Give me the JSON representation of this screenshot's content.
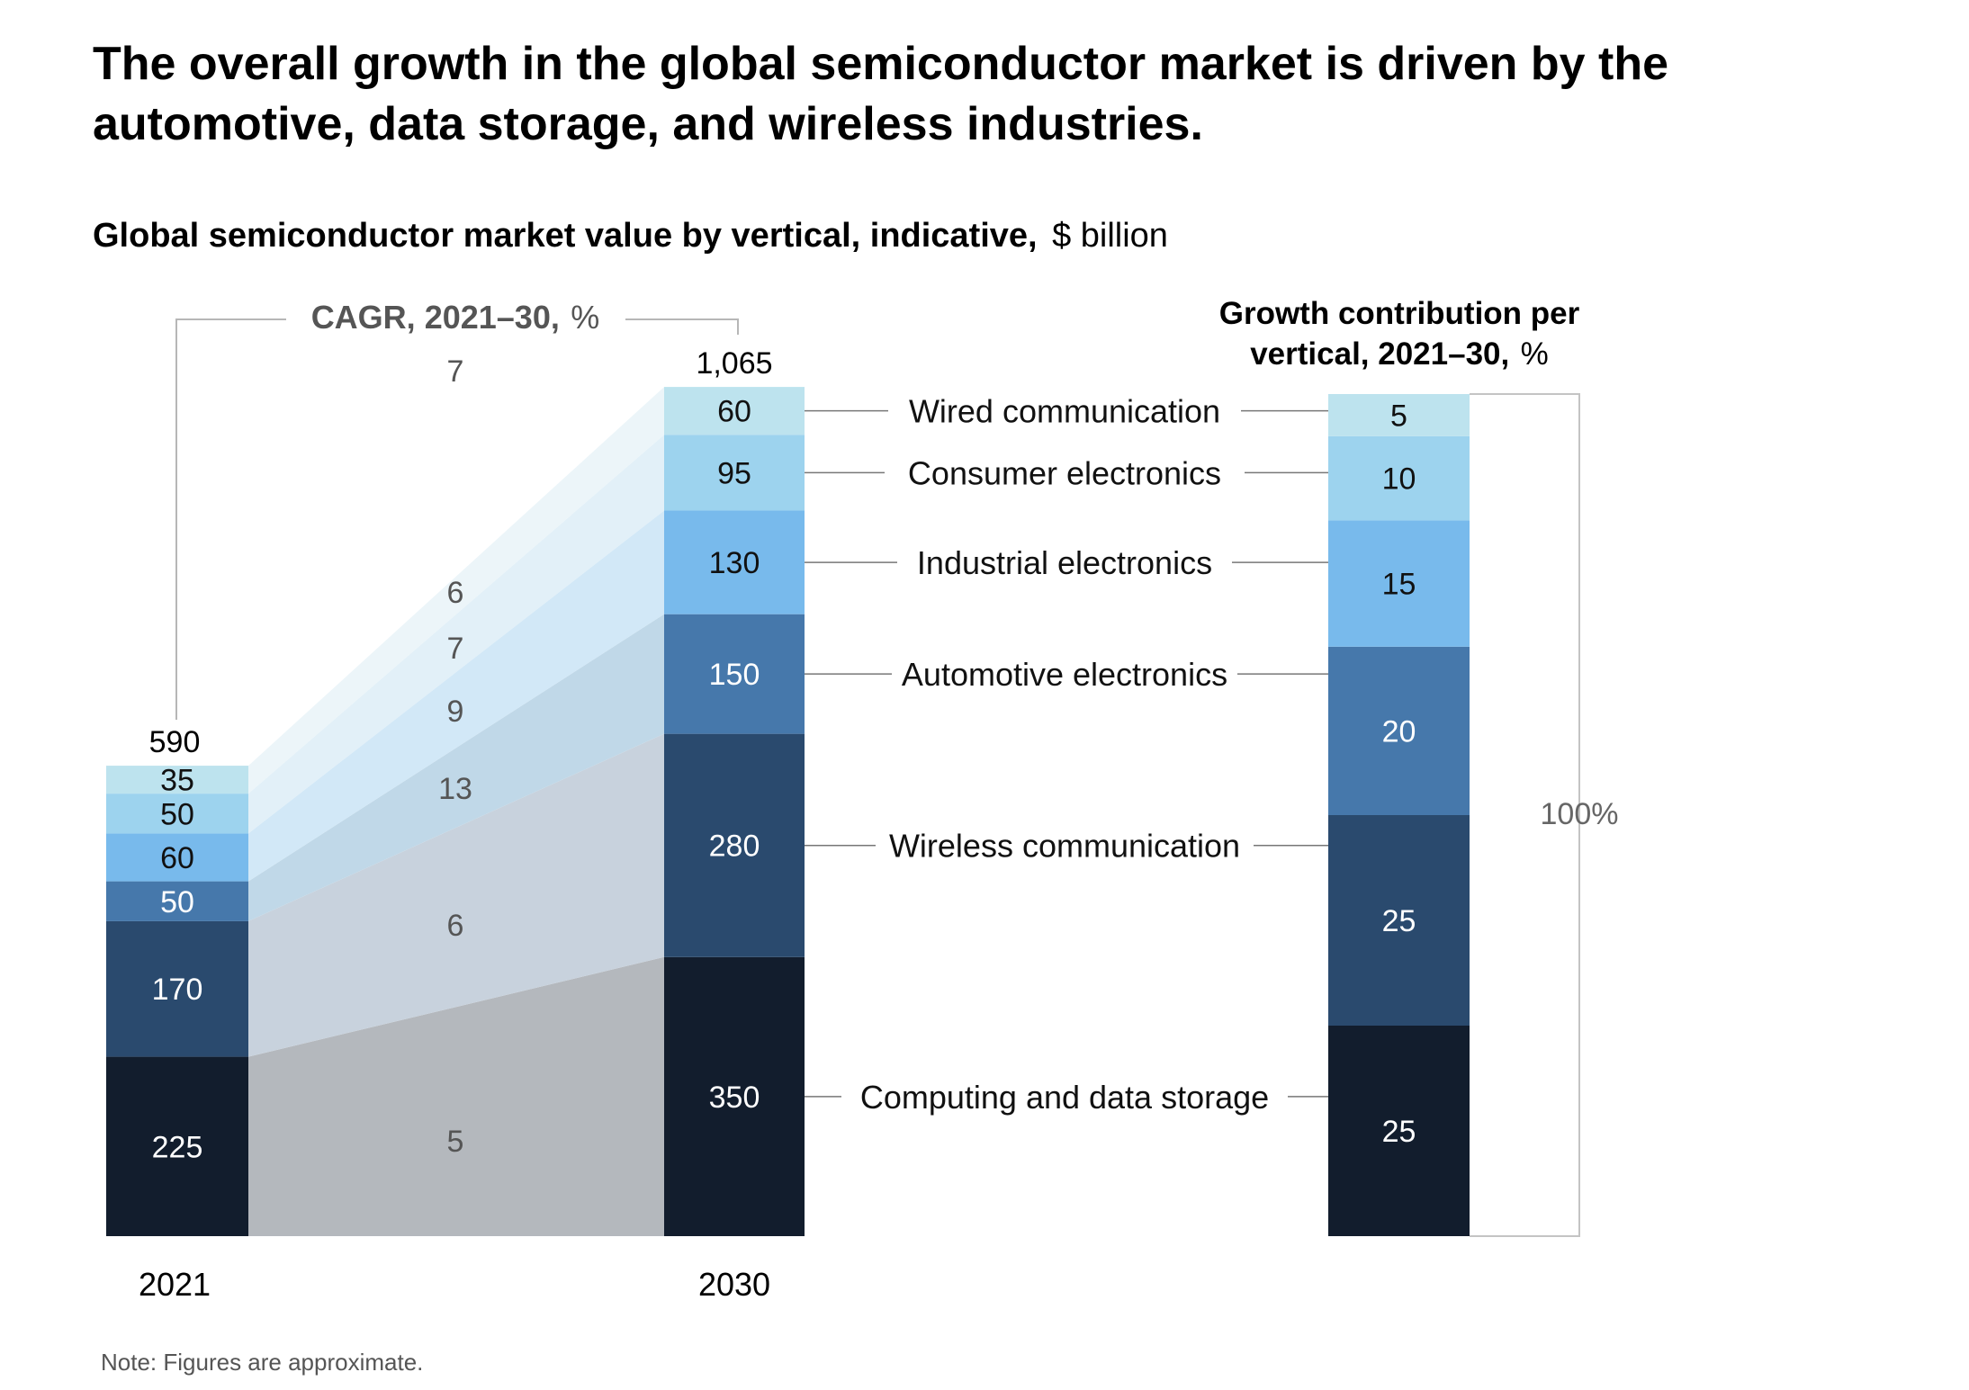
{
  "title_line1": "The overall growth in the global semiconductor market is driven by the",
  "title_line2": "automotive, data storage, and wireless industries.",
  "subtitle_bold": "Global semiconductor market value by vertical, indicative,",
  "subtitle_unit": "$ billion",
  "cagr_bold": "CAGR, 2021–30,",
  "cagr_unit": "%",
  "growth_title_line1": "Growth contribution per",
  "growth_title_line2_bold": "vertical, 2021–30,",
  "growth_title_unit": "%",
  "hundred_label": "100%",
  "note": "Note: Figures are approximate.",
  "colors": {
    "Computing and data storage": "#121d2d",
    "Wireless communication": "#2a4a6e",
    "Automotive electronics": "#4678ab",
    "Industrial electronics": "#78baec",
    "Consumer electronics": "#9dd3ee",
    "Wired communication": "#bde3ee",
    "band_computing": "#b4b8bd",
    "band_wireless": "#c8d2dd",
    "band_automotive": "#c0d8e8",
    "band_industrial": "#d2e8f7",
    "band_consumer": "#e2f0f8",
    "band_wired": "#ecf5f9"
  },
  "chart_data": {
    "type": "bar",
    "stacked": true,
    "categories": [
      "2021",
      "2030"
    ],
    "totals": [
      "590",
      "1,065"
    ],
    "series": [
      {
        "name": "Computing and data storage",
        "values": [
          225,
          350
        ],
        "cagr": 5,
        "growth_contribution": 25
      },
      {
        "name": "Wireless communication",
        "values": [
          170,
          280
        ],
        "cagr": 6,
        "growth_contribution": 25
      },
      {
        "name": "Automotive electronics",
        "values": [
          50,
          150
        ],
        "cagr": 13,
        "growth_contribution": 20
      },
      {
        "name": "Industrial electronics",
        "values": [
          60,
          130
        ],
        "cagr": 9,
        "growth_contribution": 15
      },
      {
        "name": "Consumer electronics",
        "values": [
          50,
          95
        ],
        "cagr": 7,
        "growth_contribution": 10
      },
      {
        "name": "Wired communication",
        "values": [
          35,
          60
        ],
        "cagr": 6,
        "growth_contribution": 5
      }
    ],
    "total_cagr": 7
  }
}
